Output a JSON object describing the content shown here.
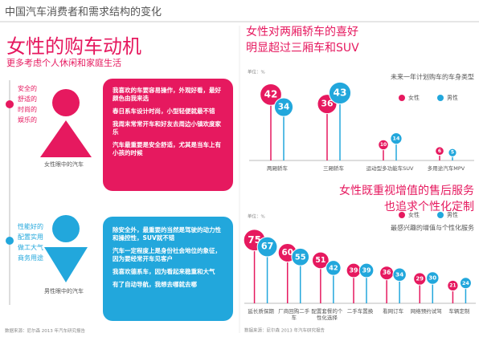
{
  "header": {
    "title": "中国汽车消费者和需求结构的变化"
  },
  "female": {
    "title": "女性的购车动机",
    "subtitle": "更多考虑个人休闲和家庭生活",
    "traits": [
      "安全的",
      "舒适的",
      "时尚的",
      "娱乐的"
    ],
    "caption": "女性眼中的汽车",
    "points": [
      "我喜欢的车要容易操作，外观好看，最好颜色由我来选",
      "春日系车设计时尚，小型轻便就最不错",
      "我周末常常开车和好友去周边小镇欢度家乐",
      "汽车最重要是安全舒适，尤其是当车上有小孩的时候"
    ]
  },
  "male": {
    "traits": [
      "性能好的",
      "配置实用",
      "做工大气",
      "商务用途"
    ],
    "caption": "男性眼中的汽车",
    "points": [
      "除安全外，最重要的当然是驾驶的动力性和操控性，SUV就不错",
      "汽车一定程度上是身份社会地位的象征，因为要经常开车见客户",
      "我喜欢德系车，因为看起来稳重和大气",
      "有了自动导航，我想去哪就去哪"
    ]
  },
  "source": "数据来源：尼尔森 2013 年汽车研究报告",
  "chart_data": [
    {
      "type": "lollipop",
      "title": [
        "女性对两厢轿车的喜好",
        "明显超过三厢车和SUV"
      ],
      "unit": "单位：%",
      "subtitle": "未来一年计划购车的车身类型",
      "categories": [
        "两厢轿车",
        "三厢轿车",
        "运动型多功能车SUV",
        "多用途汽车MPV"
      ],
      "series": [
        {
          "name": "女性",
          "color": "#e6195f",
          "values": [
            42,
            36,
            10,
            6
          ]
        },
        {
          "name": "男性",
          "color": "#22a7dc",
          "values": [
            34,
            43,
            14,
            5
          ]
        }
      ],
      "ylim": [
        0,
        45
      ]
    },
    {
      "type": "lollipop",
      "title": [
        "女性既重视增值的售后服务",
        "也追求个性化定制"
      ],
      "unit": "单位：%",
      "subtitle": "最感兴趣的增值与个性化服务",
      "categories": [
        "延长质保期",
        "厂商回购二手车",
        "配置套餐的个性化选择",
        "二手车置换",
        "看网订车",
        "网络预约试驾",
        "车辆定制"
      ],
      "series": [
        {
          "name": "女性",
          "color": "#e6195f",
          "values": [
            75,
            60,
            51,
            39,
            36,
            29,
            21
          ]
        },
        {
          "name": "男性",
          "color": "#22a7dc",
          "values": [
            67,
            55,
            42,
            39,
            34,
            30,
            24
          ]
        }
      ],
      "ylim": [
        0,
        80
      ],
      "source": "数据来源：尼尔森 2013 年汽车研究报告"
    }
  ]
}
